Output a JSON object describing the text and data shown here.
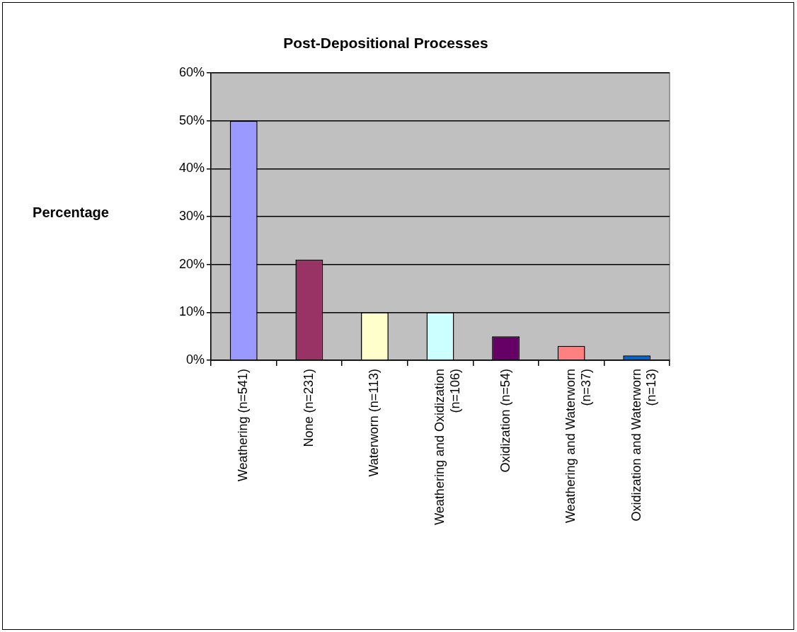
{
  "chart_data": {
    "type": "bar",
    "title": "Post-Depositional Processes",
    "ylabel": "Percentage",
    "categories": [
      "Weathering (n=541)",
      "None (n=231)",
      "Waterworn (n=113)",
      "Weathering and Oxidization (n=106)",
      "Oxidization (n=54)",
      "Weathering and Waterworn (n=37)",
      "Oxidization and Waterworn (n=13)"
    ],
    "values": [
      50,
      21,
      10,
      10,
      5,
      3,
      1
    ],
    "colors": [
      "#9999ff",
      "#993366",
      "#ffffcc",
      "#ccffff",
      "#660066",
      "#ff8080",
      "#0066cc"
    ],
    "ylim": [
      0,
      60
    ],
    "yticks": [
      {
        "value": 0,
        "label": "0%"
      },
      {
        "value": 10,
        "label": "10%"
      },
      {
        "value": 20,
        "label": "20%"
      },
      {
        "value": 30,
        "label": "30%"
      },
      {
        "value": 40,
        "label": "40%"
      },
      {
        "value": 50,
        "label": "50%"
      },
      {
        "value": 60,
        "label": "60%"
      }
    ],
    "grid": "y"
  }
}
